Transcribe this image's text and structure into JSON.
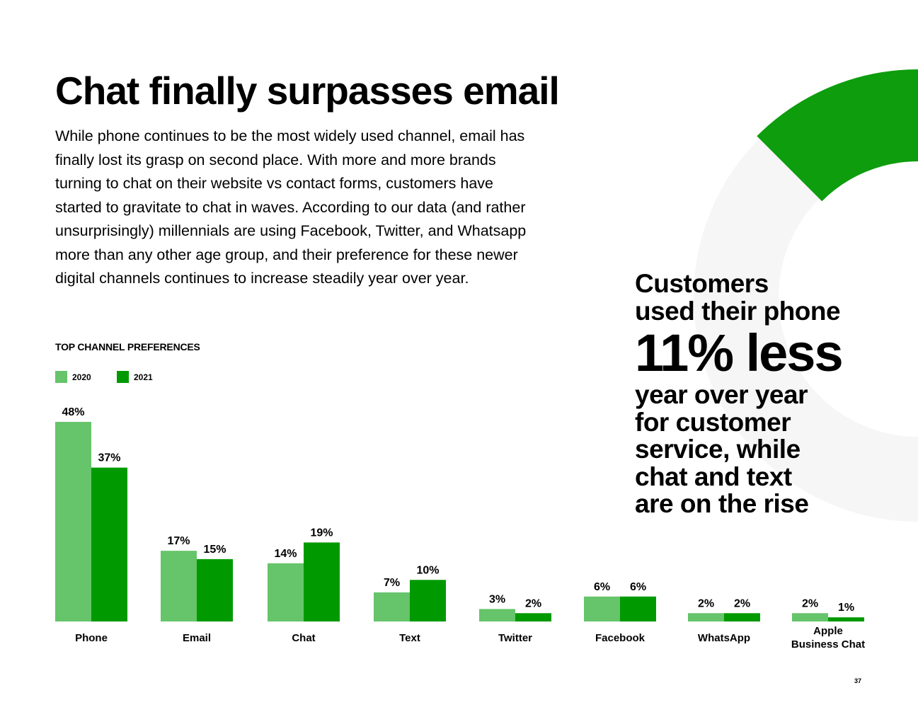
{
  "page": {
    "title": "Chat finally surpasses email",
    "intro_lines": [
      "While phone continues to be the most widely used channel, email has",
      "finally lost its grasp on second place. With more and more brands",
      "turning to chat on their website vs contact forms, customers have",
      "started to gravitate to chat in waves. According to our data (and rather",
      "unsurprisingly) millennials are using Facebook, Twitter, and Whatsapp",
      "more than any other age group, and their preference for these newer",
      "digital channels continues to increase steadily year over year."
    ],
    "page_number": "37"
  },
  "callout": {
    "lead_lines": [
      "Customers",
      "used their phone"
    ],
    "highlight": "11% less",
    "tail_lines": [
      "year over year",
      "for customer",
      "service, while",
      "chat and text",
      "are on the rise"
    ]
  },
  "colors": {
    "series_2020": "#66c46a",
    "series_2021": "#009a00",
    "ring_light": "#f6f6f6",
    "ring_accent": "#0d9d0d",
    "text": "#000000"
  },
  "chart_data": {
    "type": "bar",
    "title": "TOP CHANNEL PREFERENCES",
    "categories": [
      "Phone",
      "Email",
      "Chat",
      "Text",
      "Twitter",
      "Facebook",
      "WhatsApp",
      "Apple Business Chat"
    ],
    "series": [
      {
        "name": "2020",
        "values": [
          48,
          17,
          14,
          7,
          3,
          6,
          2,
          2
        ],
        "labels": [
          "48%",
          "17%",
          "14%",
          "7%",
          "3%",
          "6%",
          "2%",
          "2%"
        ]
      },
      {
        "name": "2021",
        "values": [
          37,
          15,
          19,
          10,
          2,
          6,
          2,
          1
        ],
        "labels": [
          "37%",
          "15%",
          "19%",
          "10%",
          "2%",
          "6%",
          "2%",
          "1%"
        ]
      }
    ],
    "ylim": [
      0,
      48
    ],
    "grid": false,
    "legend_position": "top-left"
  }
}
